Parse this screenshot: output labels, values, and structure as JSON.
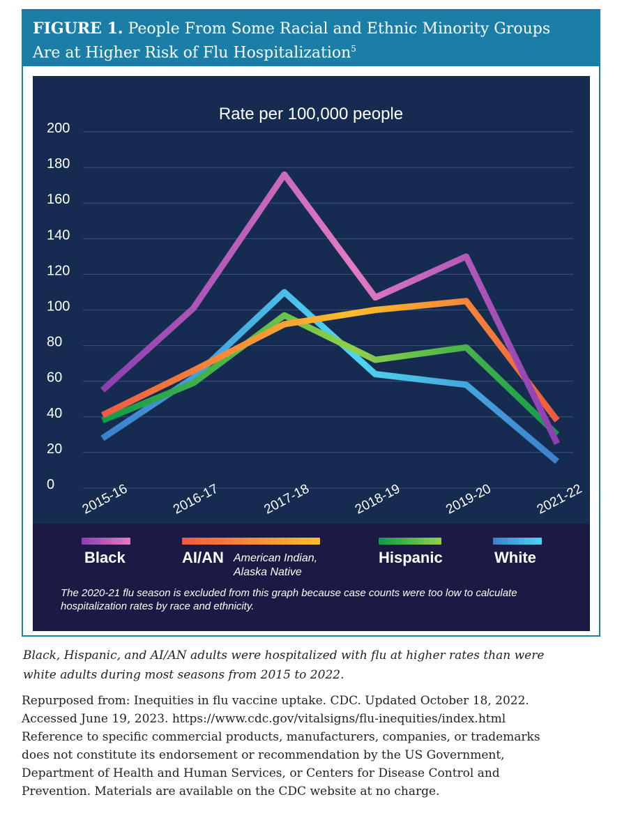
{
  "figure": {
    "label": "FIGURE 1.",
    "title_line1": "People From Some Racial and Ethnic Minority Groups",
    "title_line2": "Are at Higher Risk of Flu Hospitalization",
    "title_ref": "5"
  },
  "chart_data": {
    "type": "line",
    "title": "Rate per 100,000 people",
    "categories": [
      "2015-16",
      "2016-17",
      "2017-18",
      "2018-19",
      "2019-20",
      "2021-22"
    ],
    "ylim": [
      0,
      200
    ],
    "yticks": [
      "200",
      "180",
      "160",
      "140",
      "120",
      "100",
      "80",
      "60",
      "40",
      "20",
      "0"
    ],
    "grid": true,
    "series": [
      {
        "name": "White",
        "key": "white",
        "colors": [
          "#3d7fcc",
          "#4fd6f2"
        ],
        "values": [
          28,
          62,
          110,
          64,
          58,
          15
        ]
      },
      {
        "name": "Hispanic",
        "key": "hispanic",
        "colors": [
          "#0f9a4a",
          "#8fd14a"
        ],
        "values": [
          38,
          59,
          97,
          72,
          79,
          30
        ]
      },
      {
        "name": "AI/AN",
        "key": "aian",
        "colors": [
          "#f05a42",
          "#fbbd2e"
        ],
        "values": [
          41,
          66,
          92,
          100,
          105,
          38
        ]
      },
      {
        "name": "Black",
        "key": "black",
        "colors": [
          "#8b3fb0",
          "#e27bc4"
        ],
        "values": [
          55,
          101,
          176,
          107,
          130,
          25
        ]
      }
    ]
  },
  "legend": {
    "black": {
      "label": "Black",
      "colors": [
        "#8b3fb0",
        "#e27bc4"
      ]
    },
    "aian": {
      "label": "AI/AN",
      "sub1": "American Indian,",
      "sub2": "Alaska Native",
      "colors": [
        "#f05a42",
        "#fbbd2e"
      ]
    },
    "hispanic": {
      "label": "Hispanic",
      "colors": [
        "#0f9a4a",
        "#8fd14a"
      ]
    },
    "white": {
      "label": "White",
      "colors": [
        "#3d7fcc",
        "#4fd6f2"
      ]
    },
    "footnote_line1": "The 2020-21 flu season is excluded from this graph because case counts were too low to calculate",
    "footnote_line2": "hospitalization rates by race and ethnicity."
  },
  "caption": {
    "line1": "Black, Hispanic, and AI/AN adults were hospitalized with flu at higher rates than were",
    "line2": "white adults during most seasons from 2015 to 2022."
  },
  "source": {
    "line1": "Repurposed from: Inequities in flu vaccine uptake. CDC. Updated October 18, 2022.",
    "line2": "Accessed June 19, 2023. https://www.cdc.gov/vitalsigns/flu-inequities/index.html",
    "line3": "Reference to specific commercial products, manufacturers, companies, or trademarks",
    "line4": "does not constitute its endorsement or recommendation by the US Government,",
    "line5": "Department of Health and Human Services, or Centers for Disease Control and",
    "line6": "Prevention. Materials are available on the CDC website at no charge."
  }
}
